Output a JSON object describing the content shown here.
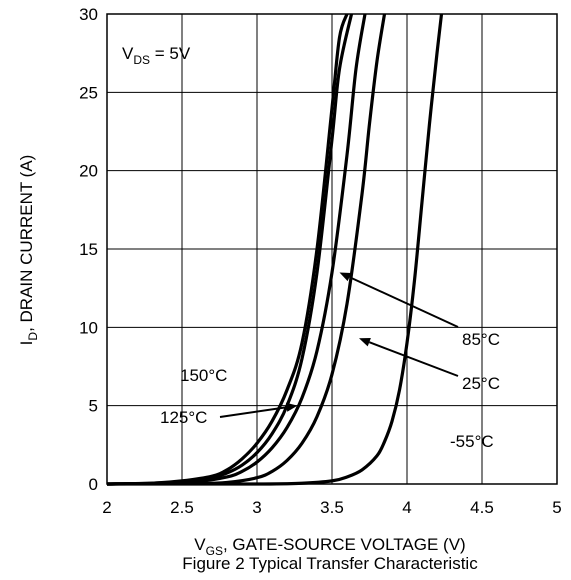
{
  "chart_data": {
    "type": "line",
    "title": "",
    "caption": "Figure 2 Typical Transfer Characteristic",
    "xlabel": {
      "main": "V",
      "sub": "GS",
      "rest": ", GATE-SOURCE VOLTAGE (V)"
    },
    "ylabel": {
      "main": "I",
      "sub": "D",
      "rest": ", DRAIN CURRENT (A)"
    },
    "xlim": [
      2,
      5
    ],
    "ylim": [
      0,
      30
    ],
    "xticks": [
      "2",
      "2.5",
      "3",
      "3.5",
      "4",
      "4.5",
      "5"
    ],
    "yticks": [
      "0",
      "5",
      "10",
      "15",
      "20",
      "25",
      "30"
    ],
    "grid": true,
    "condition": {
      "main": "V",
      "sub": "DS",
      "rest": " = 5V"
    },
    "line_color": "#000000",
    "series": [
      {
        "name": "150°C",
        "x": [
          2.0,
          2.3,
          2.5,
          2.7,
          2.8,
          2.9,
          3.0,
          3.1,
          3.2,
          3.3,
          3.4,
          3.5,
          3.55,
          3.6
        ],
        "y": [
          0.0,
          0.05,
          0.2,
          0.5,
          0.9,
          1.6,
          2.6,
          4.0,
          6.0,
          9.0,
          15.0,
          24.0,
          28.5,
          30.0
        ]
      },
      {
        "name": "125°C",
        "x": [
          2.0,
          2.3,
          2.5,
          2.7,
          2.8,
          2.9,
          3.0,
          3.1,
          3.2,
          3.3,
          3.4,
          3.5,
          3.55,
          3.63
        ],
        "y": [
          0.0,
          0.05,
          0.15,
          0.4,
          0.7,
          1.2,
          2.0,
          3.2,
          5.0,
          8.0,
          13.5,
          22.0,
          26.5,
          30.0
        ]
      },
      {
        "name": "85°C",
        "x": [
          2.0,
          2.4,
          2.6,
          2.8,
          2.9,
          3.0,
          3.1,
          3.2,
          3.3,
          3.4,
          3.5,
          3.6,
          3.66,
          3.72
        ],
        "y": [
          0.0,
          0.05,
          0.15,
          0.45,
          0.8,
          1.4,
          2.3,
          3.6,
          5.5,
          8.5,
          13.5,
          21.0,
          26.5,
          30.0
        ]
      },
      {
        "name": "25°C",
        "x": [
          2.0,
          2.6,
          2.8,
          3.0,
          3.1,
          3.2,
          3.3,
          3.4,
          3.5,
          3.6,
          3.7,
          3.75,
          3.8,
          3.85
        ],
        "y": [
          0.0,
          0.03,
          0.1,
          0.4,
          0.8,
          1.5,
          2.6,
          4.3,
          7.0,
          11.5,
          18.5,
          23.0,
          27.0,
          30.0
        ]
      },
      {
        "name": "-55°C",
        "x": [
          2.0,
          3.0,
          3.3,
          3.5,
          3.6,
          3.7,
          3.8,
          3.85,
          3.9,
          3.95,
          4.0,
          4.05,
          4.1,
          4.15,
          4.2,
          4.23
        ],
        "y": [
          0.0,
          0.0,
          0.05,
          0.2,
          0.45,
          0.9,
          1.8,
          2.7,
          4.0,
          6.0,
          9.0,
          13.0,
          18.0,
          23.0,
          27.5,
          30.0
        ]
      }
    ],
    "annotations": [
      {
        "text": "150°C",
        "target": null
      },
      {
        "text": "125°C",
        "target": [
          3.27,
          5.0
        ]
      },
      {
        "text": "85°C",
        "target": [
          3.55,
          13.5
        ]
      },
      {
        "text": "25°C",
        "target": [
          3.68,
          9.3
        ]
      },
      {
        "text": "-55°C",
        "target": null
      }
    ]
  }
}
